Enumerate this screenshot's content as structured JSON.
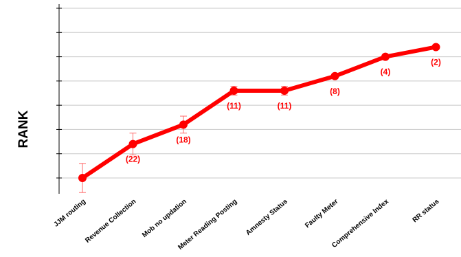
{
  "chart_data": {
    "type": "line",
    "title": "",
    "xlabel": "",
    "ylabel": "RANK",
    "categories": [
      "JJM routing",
      "Revenue Collection",
      "Mob no updation",
      "Meter Reading Posting",
      "Amnesty Status",
      "Faulty Meter",
      "Comprehensive Index",
      "RR status"
    ],
    "series": [
      {
        "values": [
          0,
          1.4,
          2.2,
          3.6,
          3.6,
          4.2,
          5.0,
          5.4
        ],
        "error": [
          0.6,
          0.45,
          0.35,
          0.18,
          0.18,
          0,
          0,
          0
        ],
        "labels": [
          "",
          "(22)",
          "(18)",
          "(11)",
          "(11)",
          "(8)",
          "(4)",
          "(2)"
        ]
      }
    ],
    "ylim": [
      -0.6,
      7.2
    ],
    "ytick_count": 8,
    "grid": true,
    "legend": "none",
    "color": "#ff0000",
    "error_color": "#ff6666"
  }
}
